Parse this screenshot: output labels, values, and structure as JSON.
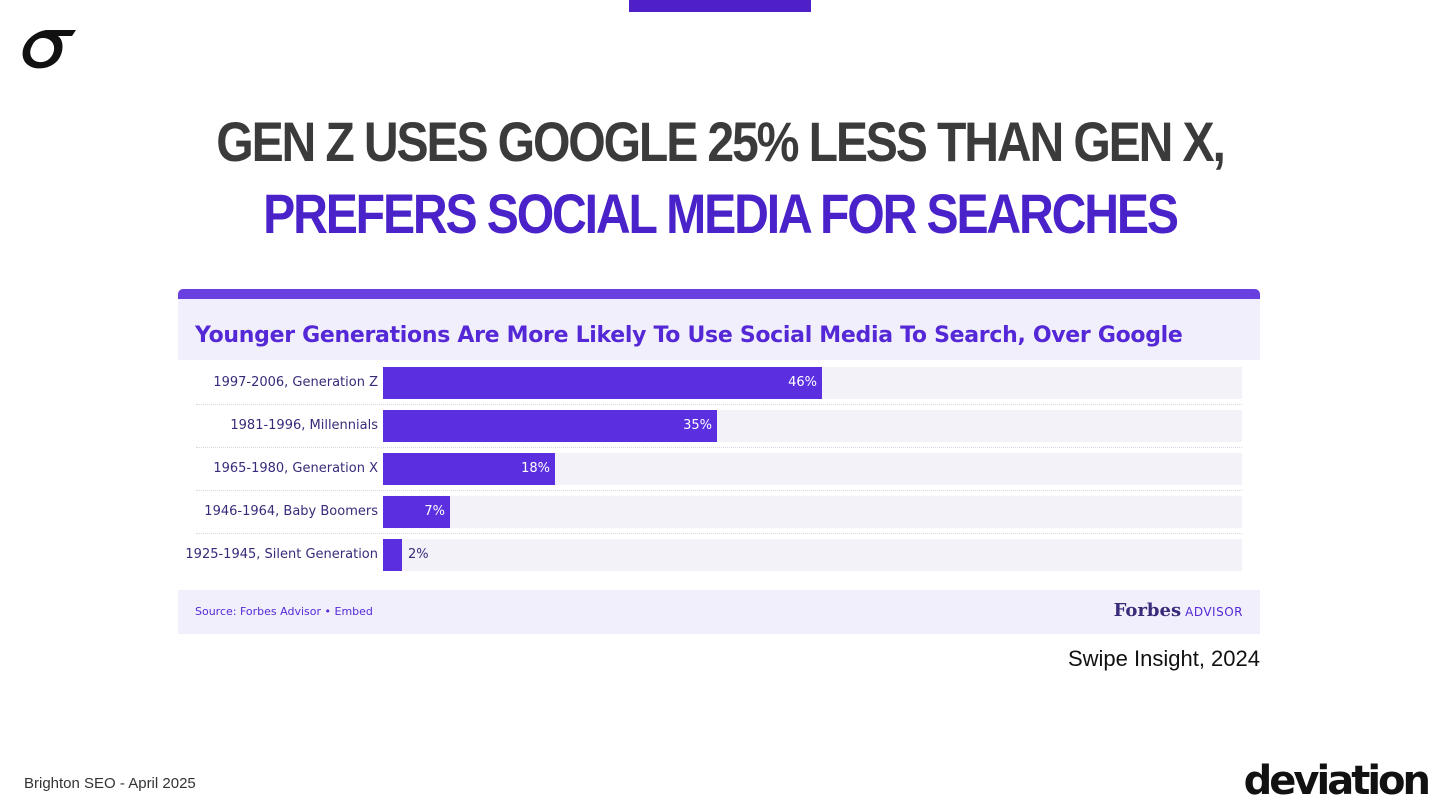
{
  "slide": {
    "title_line1": "GEN Z USES GOOGLE 25% LESS THAN GEN X,",
    "title_line2": "PREFERS SOCIAL MEDIA FOR SEARCHES",
    "citation": "Swipe Insight, 2024",
    "footer_left": "Brighton SEO - April 2025",
    "footer_brand": "deviation",
    "logo_icon": "curved-hook-logo-icon",
    "accent_color": "#4f20c8"
  },
  "card": {
    "source": "Source: Forbes Advisor • Embed",
    "brand_main": "Forbes",
    "brand_sub": "ADVISOR"
  },
  "chart_data": {
    "type": "bar",
    "orientation": "horizontal",
    "title": "Younger Generations Are More Likely To Use Social Media To Search, Over Google",
    "categories": [
      "1997-2006, Generation Z",
      "1981-1996, Millennials",
      "1965-1980, Generation X",
      "1946-1964, Baby Boomers",
      "1925-1945, Silent Generation"
    ],
    "values": [
      46,
      35,
      18,
      7,
      2
    ],
    "value_labels": [
      "46%",
      "35%",
      "18%",
      "7%",
      "2%"
    ],
    "xlim": [
      0,
      90
    ],
    "grid": false,
    "bar_color": "#5b2ee0"
  }
}
